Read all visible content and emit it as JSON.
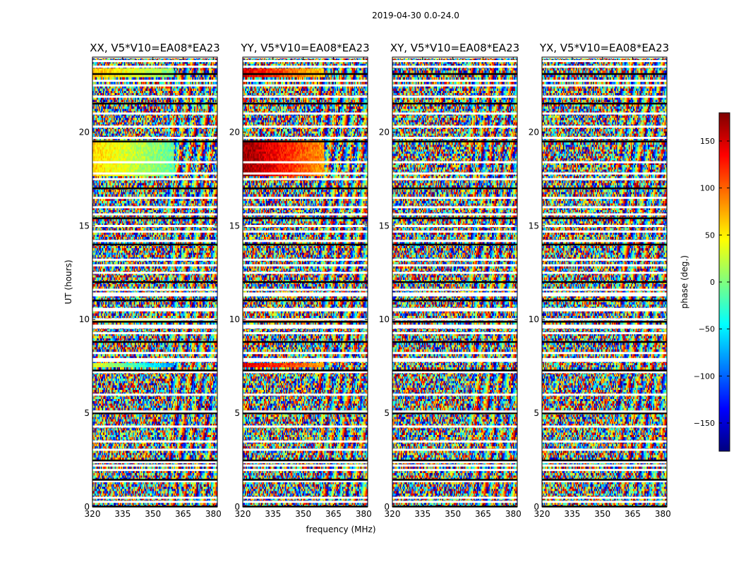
{
  "suptitle": "2019-04-30 0.0-24.0",
  "xlabel": "frequency (MHz)",
  "ylabel": "UT (hours)",
  "colors": {
    "jet": [
      "#00007f",
      "#0000ff",
      "#007fff",
      "#00ffff",
      "#7fff7f",
      "#ffff00",
      "#ff7f00",
      "#ff0000",
      "#7f0000"
    ],
    "flagged": "#ffffff",
    "axis": "#000000"
  },
  "chart_data": [
    {
      "type": "heatmap",
      "title": "XX, V5*V10=EA08*EA23",
      "polarization": "XX",
      "xlim": [
        320,
        382
      ],
      "ylim": [
        0,
        24
      ],
      "xticks": [
        320,
        335,
        350,
        365,
        380
      ],
      "yticks": [
        0,
        5,
        10,
        15,
        20
      ],
      "xtick_labels": [
        "320",
        "335",
        "350",
        "365",
        "380"
      ],
      "ytick_labels": [
        "0",
        "5",
        "10",
        "15",
        "20"
      ],
      "coherent_bands": [
        {
          "t0": 17.6,
          "t1": 19.6,
          "phase_low_freq": 60,
          "phase_high_freq": -10
        },
        {
          "t0": 22.9,
          "t1": 23.4,
          "phase_low_freq": 70,
          "phase_high_freq": 0
        },
        {
          "t0": 7.4,
          "t1": 7.7,
          "phase_low_freq": 40,
          "phase_high_freq": -80
        },
        {
          "t0": 9.8,
          "t1": 10.0,
          "phase_low_freq": 60,
          "phase_high_freq": 20
        }
      ]
    },
    {
      "type": "heatmap",
      "title": "YY, V5*V10=EA08*EA23",
      "polarization": "YY",
      "xlim": [
        320,
        382
      ],
      "ylim": [
        0,
        24
      ],
      "xticks": [
        320,
        335,
        350,
        365,
        380
      ],
      "yticks": [
        0,
        5,
        10,
        15,
        20
      ],
      "xtick_labels": [
        "320",
        "335",
        "350",
        "365",
        "380"
      ],
      "ytick_labels": [
        "0",
        "5",
        "10",
        "15",
        "20"
      ],
      "coherent_bands": [
        {
          "t0": 17.6,
          "t1": 19.6,
          "phase_low_freq": 175,
          "phase_high_freq": 80
        },
        {
          "t0": 22.9,
          "t1": 23.4,
          "phase_low_freq": 150,
          "phase_high_freq": 60
        },
        {
          "t0": 7.4,
          "t1": 7.7,
          "phase_low_freq": 150,
          "phase_high_freq": 80
        },
        {
          "t0": 9.8,
          "t1": 10.0,
          "phase_low_freq": 140,
          "phase_high_freq": 60
        }
      ]
    },
    {
      "type": "heatmap",
      "title": "XY, V5*V10=EA08*EA23",
      "polarization": "XY",
      "xlim": [
        320,
        382
      ],
      "ylim": [
        0,
        24
      ],
      "xticks": [
        320,
        335,
        350,
        365,
        380
      ],
      "yticks": [
        0,
        5,
        10,
        15,
        20
      ],
      "xtick_labels": [
        "320",
        "335",
        "350",
        "365",
        "380"
      ],
      "ytick_labels": [
        "0",
        "5",
        "10",
        "15",
        "20"
      ],
      "coherent_bands": []
    },
    {
      "type": "heatmap",
      "title": "YX, V5*V10=EA08*EA23",
      "polarization": "YX",
      "xlim": [
        320,
        382
      ],
      "ylim": [
        0,
        24
      ],
      "xticks": [
        320,
        335,
        350,
        365,
        380
      ],
      "yticks": [
        0,
        5,
        10,
        15,
        20
      ],
      "xtick_labels": [
        "320",
        "335",
        "350",
        "365",
        "380"
      ],
      "ytick_labels": [
        "0",
        "5",
        "10",
        "15",
        "20"
      ],
      "coherent_bands": []
    }
  ],
  "colorbar": {
    "label": "phase (deg.)",
    "vmin": -180,
    "vmax": 180,
    "ticks": [
      -150,
      -100,
      -50,
      0,
      50,
      100,
      150
    ],
    "tick_labels": [
      "−150",
      "−100",
      "−50",
      "0",
      "50",
      "100",
      "150"
    ]
  },
  "flagged_hours": [
    0.02,
    0.28,
    0.5,
    1.38,
    1.45,
    1.98,
    2.22,
    2.4,
    2.48,
    3.06,
    3.5,
    4.3,
    5.0,
    5.1,
    6.0,
    7.2,
    7.28,
    7.8,
    7.9,
    8.22,
    8.8,
    9.28,
    9.58,
    9.68,
    9.88,
    10.02,
    10.5,
    10.58,
    11.02,
    11.3,
    11.4,
    11.6,
    12.0,
    12.5,
    12.9,
    13.2,
    14.0,
    14.2,
    14.7,
    15.0,
    15.4,
    15.62,
    16.0,
    16.5,
    17.0,
    17.5,
    17.8,
    18.4,
    19.5,
    19.7,
    20.3,
    21.0,
    21.52,
    21.9,
    22.5,
    22.75,
    23.1,
    23.5,
    23.8,
    24.0
  ]
}
